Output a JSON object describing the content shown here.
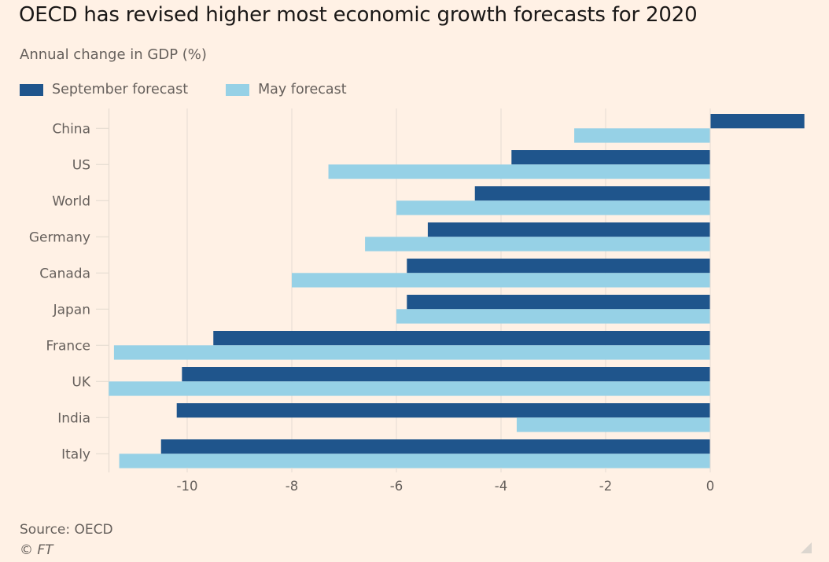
{
  "chart_data": {
    "type": "bar",
    "orientation": "horizontal",
    "title": "OECD has revised higher most economic growth forecasts for 2020",
    "subtitle": "Annual change in GDP (%)",
    "xlabel": "",
    "ylabel": "",
    "categories": [
      "China",
      "US",
      "World",
      "Germany",
      "Canada",
      "Japan",
      "France",
      "UK",
      "India",
      "Italy"
    ],
    "series": [
      {
        "name": "September forecast",
        "color": "#1f558c",
        "values": [
          1.8,
          -3.8,
          -4.5,
          -5.4,
          -5.8,
          -5.8,
          -9.5,
          -10.1,
          -10.2,
          -10.5
        ]
      },
      {
        "name": "May forecast",
        "color": "#96d1e6",
        "values": [
          -2.6,
          -7.3,
          -6.0,
          -6.6,
          -8.0,
          -6.0,
          -11.4,
          -11.5,
          -3.7,
          -11.3
        ]
      }
    ],
    "xticks": [
      -10,
      -8,
      -6,
      -4,
      -2,
      0
    ],
    "xtick_labels": [
      "-10",
      "-8",
      "-6",
      "-4",
      "-2",
      "0"
    ],
    "xlim": [
      -11.5,
      2.2
    ],
    "grid": "vertical",
    "legend": "top-left"
  },
  "footer": {
    "source": "Source: OECD",
    "copyright": "© FT"
  },
  "colors": {
    "background": "#fff1e5",
    "gridline": "#e6dcd2",
    "text": "#66605c",
    "title": "#1a1817"
  }
}
